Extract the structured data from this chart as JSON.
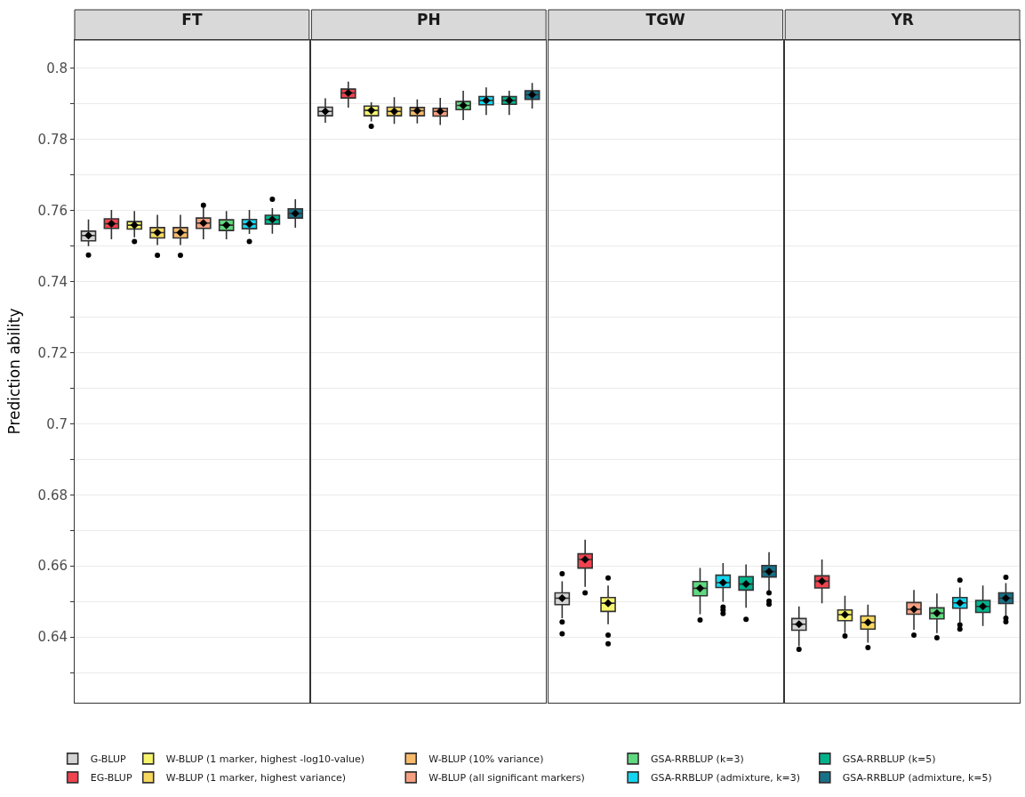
{
  "chart_data": {
    "type": "box",
    "categories": [
      "FT",
      "PH",
      "TGW",
      "YR"
    ],
    "ylabel": "Prediction ability",
    "ylim": [
      0.6215,
      0.808
    ],
    "yticks": [
      {
        "value": 0.63,
        "label": null
      },
      {
        "value": 0.64,
        "label": "0.64"
      },
      {
        "value": 0.65,
        "label": null
      },
      {
        "value": 0.66,
        "label": "0.66"
      },
      {
        "value": 0.67,
        "label": null
      },
      {
        "value": 0.68,
        "label": "0.68"
      },
      {
        "value": 0.69,
        "label": null
      },
      {
        "value": 0.7,
        "label": "0.7"
      },
      {
        "value": 0.71,
        "label": null
      },
      {
        "value": 0.72,
        "label": "0.72"
      },
      {
        "value": 0.73,
        "label": null
      },
      {
        "value": 0.74,
        "label": "0.74"
      },
      {
        "value": 0.75,
        "label": null
      },
      {
        "value": 0.76,
        "label": "0.76"
      },
      {
        "value": 0.77,
        "label": null
      },
      {
        "value": 0.78,
        "label": "0.78"
      },
      {
        "value": 0.79,
        "label": null
      },
      {
        "value": 0.8,
        "label": "0.8"
      }
    ],
    "grid": "y",
    "legend": "bottom",
    "series": [
      {
        "name": "G-BLUP",
        "color": "#d3d3d3",
        "boxes": [
          {
            "low": 0.75,
            "q1": 0.7515,
            "median": 0.753,
            "q3": 0.7542,
            "high": 0.7575,
            "mean": 0.753,
            "outliers": [
              0.7475
            ]
          },
          {
            "low": 0.7847,
            "q1": 0.7867,
            "median": 0.7879,
            "q3": 0.7891,
            "high": 0.7916,
            "mean": 0.7879
          },
          {
            "low": 0.6453,
            "q1": 0.6491,
            "median": 0.6509,
            "q3": 0.6524,
            "high": 0.6557,
            "mean": 0.6509,
            "outliers": [
              0.6578,
              0.6442,
              0.6409
            ]
          },
          {
            "low": 0.6374,
            "q1": 0.6419,
            "median": 0.6436,
            "q3": 0.6452,
            "high": 0.6486,
            "mean": 0.6436,
            "outliers": [
              0.6365
            ]
          }
        ]
      },
      {
        "name": "EG-BLUP",
        "color": "#f0434f",
        "boxes": [
          {
            "low": 0.7519,
            "q1": 0.755,
            "median": 0.7563,
            "q3": 0.7577,
            "high": 0.7602,
            "mean": 0.7563
          },
          {
            "low": 0.789,
            "q1": 0.7917,
            "median": 0.7931,
            "q3": 0.7942,
            "high": 0.7963,
            "mean": 0.7931
          },
          {
            "low": 0.6541,
            "q1": 0.6594,
            "median": 0.6618,
            "q3": 0.6634,
            "high": 0.6674,
            "mean": 0.6618,
            "outliers": [
              0.6524
            ]
          },
          {
            "low": 0.6495,
            "q1": 0.6538,
            "median": 0.6557,
            "q3": 0.6572,
            "high": 0.6618,
            "mean": 0.6557
          }
        ]
      },
      {
        "name": "W-BLUP (1 marker, highest -log10-value)",
        "color": "#f7f56c",
        "boxes": [
          {
            "low": 0.7525,
            "q1": 0.7548,
            "median": 0.7559,
            "q3": 0.7569,
            "high": 0.7599,
            "mean": 0.7559,
            "outliers": [
              0.7513
            ]
          },
          {
            "low": 0.7851,
            "q1": 0.7867,
            "median": 0.7882,
            "q3": 0.7894,
            "high": 0.7905,
            "mean": 0.7882,
            "outliers": [
              0.7837
            ]
          },
          {
            "low": 0.6436,
            "q1": 0.6472,
            "median": 0.6495,
            "q3": 0.6511,
            "high": 0.6545,
            "mean": 0.6495,
            "outliers": [
              0.6566,
              0.6405,
              0.6381
            ]
          },
          {
            "low": 0.6411,
            "q1": 0.6446,
            "median": 0.6463,
            "q3": 0.6476,
            "high": 0.6516,
            "mean": 0.6463,
            "outliers": [
              0.6403
            ]
          }
        ]
      },
      {
        "name": "W-BLUP (1 marker, highest variance)",
        "color": "#f7d85e",
        "boxes": [
          {
            "low": 0.7503,
            "q1": 0.7523,
            "median": 0.7538,
            "q3": 0.7552,
            "high": 0.7588,
            "mean": 0.7538,
            "outliers": [
              0.7474
            ]
          },
          {
            "low": 0.7844,
            "q1": 0.7867,
            "median": 0.7879,
            "q3": 0.7891,
            "high": 0.7919,
            "mean": 0.7879
          },
          null,
          {
            "low": 0.6384,
            "q1": 0.6422,
            "median": 0.6441,
            "q3": 0.6459,
            "high": 0.6491,
            "mean": 0.6441,
            "outliers": [
              0.637
            ]
          }
        ]
      },
      {
        "name": "W-BLUP (10% variance)",
        "color": "#f8bb6c",
        "boxes": [
          {
            "low": 0.7503,
            "q1": 0.7523,
            "median": 0.7538,
            "q3": 0.7552,
            "high": 0.7588,
            "mean": 0.7538,
            "outliers": [
              0.7474
            ]
          },
          {
            "low": 0.7845,
            "q1": 0.7867,
            "median": 0.7881,
            "q3": 0.789,
            "high": 0.7913,
            "mean": 0.7881
          },
          null,
          null
        ]
      },
      {
        "name": "W-BLUP (all significant markers)",
        "color": "#f5a081",
        "boxes": [
          {
            "low": 0.7519,
            "q1": 0.755,
            "median": 0.7565,
            "q3": 0.7579,
            "high": 0.7609,
            "mean": 0.7565,
            "outliers": [
              0.7615
            ]
          },
          {
            "low": 0.7841,
            "q1": 0.7866,
            "median": 0.7879,
            "q3": 0.7888,
            "high": 0.7917,
            "mean": 0.7879
          },
          null,
          {
            "low": 0.642,
            "q1": 0.6464,
            "median": 0.6478,
            "q3": 0.6497,
            "high": 0.6532,
            "mean": 0.6478,
            "outliers": [
              0.6405
            ]
          }
        ]
      },
      {
        "name": "GSA-RRBLUP (k=3)",
        "color": "#5fd87f",
        "boxes": [
          {
            "low": 0.7519,
            "q1": 0.7544,
            "median": 0.7559,
            "q3": 0.7574,
            "high": 0.7599,
            "mean": 0.7559
          },
          {
            "low": 0.7855,
            "q1": 0.7884,
            "median": 0.7896,
            "q3": 0.7907,
            "high": 0.7937,
            "mean": 0.7896
          },
          {
            "low": 0.6464,
            "q1": 0.6516,
            "median": 0.6537,
            "q3": 0.6556,
            "high": 0.6594,
            "mean": 0.6537,
            "outliers": [
              0.6448
            ]
          },
          {
            "low": 0.6411,
            "q1": 0.6451,
            "median": 0.6467,
            "q3": 0.6482,
            "high": 0.6522,
            "mean": 0.6467,
            "outliers": [
              0.6398
            ]
          }
        ]
      },
      {
        "name": "GSA-RRBLUP (admixture, k=3)",
        "color": "#12d6f0",
        "boxes": [
          {
            "low": 0.7534,
            "q1": 0.7549,
            "median": 0.7562,
            "q3": 0.7575,
            "high": 0.7602,
            "mean": 0.7562,
            "outliers": [
              0.7513
            ]
          },
          {
            "low": 0.7869,
            "q1": 0.7898,
            "median": 0.791,
            "q3": 0.7921,
            "high": 0.7947,
            "mean": 0.791
          },
          {
            "low": 0.6499,
            "q1": 0.6539,
            "median": 0.6553,
            "q3": 0.6574,
            "high": 0.6608,
            "mean": 0.6553,
            "outliers": [
              0.6484,
              0.6476,
              0.6466
            ]
          },
          {
            "low": 0.6441,
            "q1": 0.6481,
            "median": 0.6496,
            "q3": 0.6511,
            "high": 0.6539,
            "mean": 0.6496,
            "outliers": [
              0.656,
              0.6434,
              0.6422
            ]
          }
        ]
      },
      {
        "name": "GSA-RRBLUP (k=5)",
        "color": "#00b38c",
        "boxes": [
          {
            "low": 0.7535,
            "q1": 0.7562,
            "median": 0.7575,
            "q3": 0.7587,
            "high": 0.7607,
            "mean": 0.7575,
            "outliers": [
              0.7632
            ]
          },
          {
            "low": 0.7869,
            "q1": 0.7899,
            "median": 0.791,
            "q3": 0.7921,
            "high": 0.7937,
            "mean": 0.791
          },
          {
            "low": 0.6482,
            "q1": 0.6532,
            "median": 0.6549,
            "q3": 0.657,
            "high": 0.6604,
            "mean": 0.6549,
            "outliers": [
              0.645
            ]
          },
          {
            "low": 0.6431,
            "q1": 0.6469,
            "median": 0.6486,
            "q3": 0.6503,
            "high": 0.6545,
            "mean": 0.6486
          }
        ]
      },
      {
        "name": "GSA-RRBLUP (admixture, k=5)",
        "color": "#167189",
        "boxes": [
          {
            "low": 0.7552,
            "q1": 0.7579,
            "median": 0.7592,
            "q3": 0.7605,
            "high": 0.7632,
            "mean": 0.7592
          },
          {
            "low": 0.7887,
            "q1": 0.7913,
            "median": 0.7926,
            "q3": 0.7937,
            "high": 0.7959,
            "mean": 0.7926
          },
          {
            "low": 0.6527,
            "q1": 0.6569,
            "median": 0.6584,
            "q3": 0.6601,
            "high": 0.6639,
            "mean": 0.6584,
            "outliers": [
              0.6524,
              0.6501,
              0.6492
            ]
          },
          {
            "low": 0.6457,
            "q1": 0.6494,
            "median": 0.6509,
            "q3": 0.6524,
            "high": 0.6552,
            "mean": 0.6509,
            "outliers": [
              0.6568,
              0.6453,
              0.6443
            ]
          }
        ]
      }
    ]
  }
}
